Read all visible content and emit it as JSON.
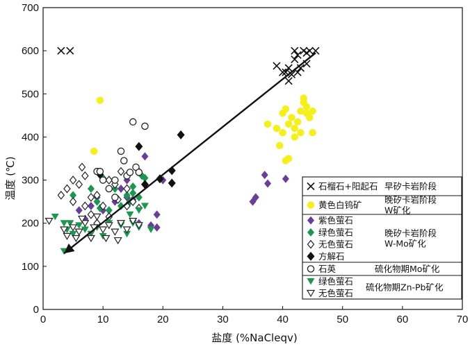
{
  "chart_data": {
    "type": "scatter",
    "xlabel": "盐度 (%NaCleqv)",
    "ylabel": "温度 (℃)",
    "xlim": [
      0,
      70
    ],
    "ylim": [
      0,
      700
    ],
    "xticks": [
      "0",
      "10",
      "20",
      "30",
      "40",
      "50",
      "60",
      "70"
    ],
    "yticks": [
      "0",
      "100",
      "200",
      "300",
      "400",
      "500",
      "600",
      "700"
    ],
    "grid": false,
    "legend_position": "right",
    "trend_line": {
      "x": [
        3.5,
        45.5
      ],
      "y": [
        130,
        595
      ]
    },
    "legend": {
      "rows": [
        {
          "entries": [
            "石榴石+阳起石"
          ],
          "stage": "早矽卡岩阶段"
        },
        {
          "entries": [
            "黄色白钨矿"
          ],
          "stage": "晚矽卡岩阶段W矿化"
        },
        {
          "entries": [
            "紫色萤石",
            "绿色萤石",
            "无色萤石",
            "方解石"
          ],
          "stage": "晚矽卡岩阶段W-Mo矿化"
        },
        {
          "entries": [
            "石英"
          ],
          "stage": "硫化物期Mo矿化"
        },
        {
          "entries": [
            "绿色萤石",
            "无色萤石"
          ],
          "stage": "硫化物期Zn-Pb矿化"
        }
      ]
    },
    "series": [
      {
        "name": "石榴石+阳起石",
        "marker": "x",
        "color": "#111111",
        "points": [
          [
            3,
            600
          ],
          [
            4.5,
            600
          ],
          [
            39,
            565
          ],
          [
            40,
            550
          ],
          [
            40.5,
            550
          ],
          [
            41,
            560
          ],
          [
            41.5,
            545
          ],
          [
            42,
            580
          ],
          [
            42,
            600
          ],
          [
            42.5,
            590
          ],
          [
            43,
            560
          ],
          [
            43.5,
            600
          ],
          [
            44,
            595
          ],
          [
            44,
            570
          ],
          [
            44.5,
            600
          ],
          [
            45.5,
            600
          ],
          [
            41,
            530
          ],
          [
            42.5,
            550
          ]
        ]
      },
      {
        "name": "黄色白钨矿",
        "marker": "circle",
        "color": "#f5ef1a",
        "points": [
          [
            9.5,
            485
          ],
          [
            8.5,
            367
          ],
          [
            37.5,
            430
          ],
          [
            39,
            420
          ],
          [
            39.5,
            380
          ],
          [
            40,
            410
          ],
          [
            40,
            455
          ],
          [
            40.5,
            465
          ],
          [
            41,
            430
          ],
          [
            41,
            350
          ],
          [
            41.5,
            445
          ],
          [
            42,
            420
          ],
          [
            42,
            400
          ],
          [
            42.5,
            435
          ],
          [
            43,
            410
          ],
          [
            43,
            460
          ],
          [
            43.5,
            480
          ],
          [
            43.5,
            490
          ],
          [
            44,
            470
          ],
          [
            44,
            455
          ],
          [
            44.5,
            445
          ],
          [
            45,
            460
          ],
          [
            45,
            410
          ],
          [
            40.5,
            345
          ]
        ]
      },
      {
        "name": "紫色萤石",
        "marker": "diamond",
        "color": "#6a3d9a",
        "points": [
          [
            5,
            250
          ],
          [
            6,
            230
          ],
          [
            7,
            210
          ],
          [
            8,
            240
          ],
          [
            9,
            260
          ],
          [
            10,
            230
          ],
          [
            11,
            215
          ],
          [
            12,
            250
          ],
          [
            13,
            280
          ],
          [
            14,
            260
          ],
          [
            15,
            255
          ],
          [
            16,
            200
          ],
          [
            17,
            355
          ],
          [
            18,
            195
          ],
          [
            19,
            190
          ],
          [
            19,
            220
          ],
          [
            20,
            300
          ],
          [
            35,
            250
          ],
          [
            35.5,
            260
          ],
          [
            37,
            312
          ],
          [
            37.5,
            292
          ],
          [
            40.5,
            303
          ],
          [
            14,
            300
          ],
          [
            16,
            320
          ]
        ]
      },
      {
        "name": "绿色萤石 (晚矽卡岩阶段)",
        "marker": "diamond",
        "color": "#1a9850",
        "points": [
          [
            8,
            280
          ],
          [
            9,
            250
          ],
          [
            10,
            305
          ],
          [
            11,
            230
          ],
          [
            12,
            280
          ],
          [
            13,
            240
          ],
          [
            14,
            265
          ],
          [
            15,
            285
          ],
          [
            15,
            270
          ],
          [
            16,
            260
          ],
          [
            16.5,
            310
          ],
          [
            17,
            305
          ],
          [
            9.5,
            235
          ],
          [
            14.5,
            250
          ],
          [
            5,
            265
          ]
        ]
      },
      {
        "name": "无色萤石 (晚矽卡岩阶段)",
        "marker": "diamond-open",
        "color": "#222222",
        "points": [
          [
            3,
            265
          ],
          [
            4,
            280
          ],
          [
            5,
            300
          ],
          [
            5,
            250
          ],
          [
            6,
            290
          ],
          [
            7,
            310
          ],
          [
            7,
            240
          ],
          [
            8,
            220
          ],
          [
            8,
            260
          ],
          [
            9,
            200
          ],
          [
            10,
            240
          ],
          [
            11,
            215
          ],
          [
            11,
            300
          ],
          [
            12,
            290
          ],
          [
            13,
            320
          ],
          [
            14,
            240
          ],
          [
            14,
            280
          ],
          [
            15,
            250
          ],
          [
            16,
            235
          ],
          [
            12.5,
            255
          ],
          [
            6.5,
            330
          ],
          [
            9,
            265
          ]
        ]
      },
      {
        "name": "方解石",
        "marker": "diamond-filled",
        "color": "#111111",
        "points": [
          [
            9.5,
            313
          ],
          [
            16,
            378
          ],
          [
            17,
            290
          ],
          [
            19.5,
            303
          ],
          [
            21.5,
            293
          ],
          [
            21.5,
            322
          ],
          [
            23,
            405
          ]
        ]
      },
      {
        "name": "石英",
        "marker": "circle-open",
        "color": "#222222",
        "points": [
          [
            9,
            320
          ],
          [
            10,
            300
          ],
          [
            12,
            300
          ],
          [
            13,
            367
          ],
          [
            13.5,
            345
          ],
          [
            14,
            310
          ],
          [
            15,
            435
          ],
          [
            15.5,
            330
          ],
          [
            16,
            318
          ],
          [
            17,
            425
          ],
          [
            11,
            280
          ],
          [
            12,
            260
          ],
          [
            14.5,
            318
          ],
          [
            9.5,
            320
          ]
        ]
      },
      {
        "name": "绿色萤石 (硫化物期)",
        "marker": "triangle-down",
        "color": "#1a9850",
        "points": [
          [
            2,
            215
          ],
          [
            3.5,
            200
          ],
          [
            4,
            185
          ],
          [
            4.5,
            200
          ],
          [
            5,
            175
          ],
          [
            6,
            195
          ],
          [
            7,
            185
          ],
          [
            8,
            175
          ],
          [
            9,
            190
          ],
          [
            10,
            170
          ],
          [
            11,
            200
          ],
          [
            12,
            180
          ],
          [
            13,
            195
          ],
          [
            14,
            175
          ],
          [
            15,
            200
          ],
          [
            16,
            190
          ],
          [
            17,
            240
          ],
          [
            18,
            185
          ],
          [
            3.5,
            135
          ],
          [
            14.5,
            220
          ],
          [
            16,
            230
          ]
        ]
      },
      {
        "name": "无色萤石 (硫化物期)",
        "marker": "triangle-down-open",
        "color": "#222222",
        "points": [
          [
            1,
            205
          ],
          [
            3.5,
            185
          ],
          [
            4,
            170
          ],
          [
            5,
            190
          ],
          [
            5.5,
            165
          ],
          [
            6,
            180
          ],
          [
            7,
            200
          ],
          [
            8,
            165
          ],
          [
            8.5,
            190
          ],
          [
            9,
            215
          ],
          [
            10,
            185
          ],
          [
            10.5,
            165
          ],
          [
            11,
            195
          ],
          [
            12,
            180
          ],
          [
            12.5,
            160
          ],
          [
            13,
            200
          ],
          [
            14,
            185
          ],
          [
            15,
            205
          ],
          [
            16,
            195
          ],
          [
            6.5,
            210
          ]
        ]
      }
    ]
  }
}
